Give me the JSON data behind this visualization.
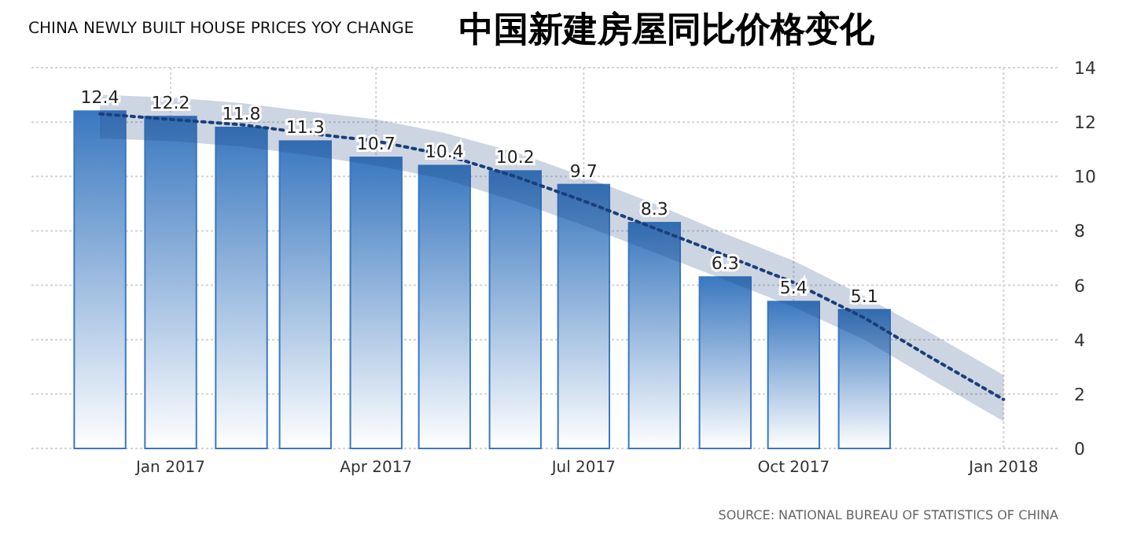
{
  "chart_data": {
    "type": "bar",
    "title": "CHINA NEWLY BUILT HOUSE PRICES YOY CHANGE",
    "subtitle": "中国新建房屋同比价格变化",
    "x": [
      "2016-12",
      "2017-01",
      "2017-02",
      "2017-03",
      "2017-04",
      "2017-05",
      "2017-06",
      "2017-07",
      "2017-08",
      "2017-09",
      "2017-10",
      "2017-11"
    ],
    "series": [
      {
        "color": "#3a78c0",
        "values": [
          12.4,
          12.2,
          11.8,
          11.3,
          10.7,
          10.4,
          10.2,
          9.7,
          8.3,
          6.3,
          5.4,
          5.1
        ],
        "value_labels": [
          "12.4",
          "12.2",
          "11.8",
          "11.3",
          "10.7",
          "10.4",
          "10.2",
          "9.7",
          "8.3",
          "6.3",
          "5.4",
          "5.1"
        ]
      },
      {
        "type": "line",
        "color": "#1a3f7a",
        "line_style": "dotted",
        "x": [
          "2016-12",
          "2017-01",
          "2017-02",
          "2017-03",
          "2017-04",
          "2017-05",
          "2017-06",
          "2017-07",
          "2017-08",
          "2017-09",
          "2017-10",
          "2017-11",
          "2017-12",
          "2018-01"
        ],
        "values": [
          12.3,
          12.1,
          11.9,
          11.6,
          11.3,
          10.8,
          10.0,
          9.1,
          8.1,
          7.1,
          6.1,
          4.8,
          3.3,
          1.8
        ],
        "lower": [
          11.4,
          11.3,
          11.1,
          10.8,
          10.4,
          9.9,
          9.1,
          8.2,
          7.2,
          6.2,
          5.2,
          4.0,
          2.5,
          1.0
        ],
        "upper": [
          13.0,
          12.9,
          12.7,
          12.4,
          12.1,
          11.6,
          10.9,
          10.0,
          9.0,
          7.9,
          6.9,
          5.6,
          4.2,
          2.7
        ]
      }
    ],
    "xlim": [
      "2016-11-01",
      "2018-01-25"
    ],
    "xticks": [
      {
        "value": "2017-01",
        "label": "Jan 2017"
      },
      {
        "value": "2017-04",
        "label": "Apr 2017"
      },
      {
        "value": "2017-07",
        "label": "Jul 2017"
      },
      {
        "value": "2017-10",
        "label": "Oct 2017"
      },
      {
        "value": "2018-01",
        "label": "Jan 2018"
      }
    ],
    "ylim": [
      0,
      14
    ],
    "yticks": [
      0,
      2,
      4,
      6,
      8,
      10,
      12,
      14
    ],
    "grid": true,
    "annotations": [
      "SOURCE: NATIONAL BUREAU OF STATISTICS OF CHINA"
    ]
  }
}
